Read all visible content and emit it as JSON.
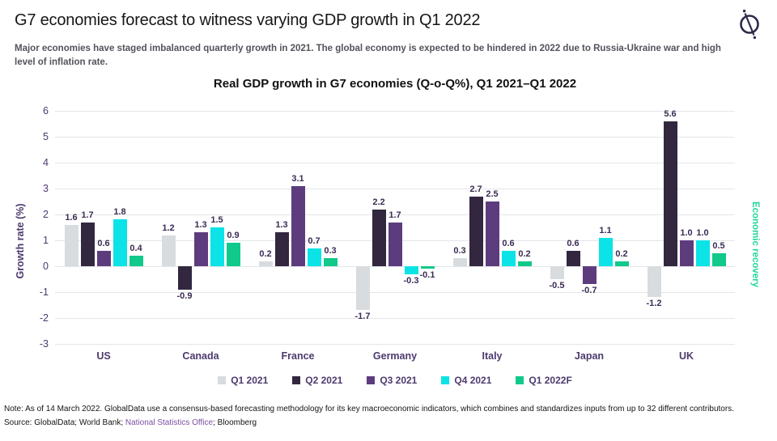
{
  "header": {
    "title": "G7 economies forecast to witness varying GDP growth in Q1 2022",
    "subtitle": "Major economies have staged imbalanced quarterly growth in 2021. The global economy is expected to be hindered in 2022 due to Russia-Ukraine war and high level of inflation rate.",
    "logo_icon": "globaldata-logo"
  },
  "chart_data": {
    "type": "bar",
    "title": "Real GDP growth in G7 economies (Q-o-Q%), Q1 2021–Q1 2022",
    "xlabel": "",
    "ylabel": "Growth rate (%)",
    "ylim": [
      -3,
      6
    ],
    "yticks": [
      6,
      5,
      4,
      3,
      2,
      1,
      0,
      -1,
      -2,
      -3
    ],
    "grid": true,
    "legend_position": "bottom",
    "categories": [
      "US",
      "Canada",
      "France",
      "Germany",
      "Italy",
      "Japan",
      "UK"
    ],
    "series": [
      {
        "name": "Q1 2021",
        "color": "#d9dcde",
        "values": [
          1.6,
          1.2,
          0.2,
          -1.7,
          0.3,
          -0.5,
          -1.2
        ]
      },
      {
        "name": "Q2 2021",
        "color": "#32273f",
        "values": [
          1.7,
          -0.9,
          1.3,
          2.2,
          2.7,
          0.6,
          5.6
        ]
      },
      {
        "name": "Q3 2021",
        "color": "#5d3c7e",
        "values": [
          0.6,
          1.3,
          3.1,
          1.7,
          2.5,
          -0.7,
          1.0
        ]
      },
      {
        "name": "Q4 2021",
        "color": "#0be3e6",
        "values": [
          1.8,
          1.5,
          0.7,
          -0.3,
          0.6,
          1.1,
          1.0
        ]
      },
      {
        "name": "Q1 2022F",
        "color": "#10c98a",
        "values": [
          0.4,
          0.9,
          0.3,
          -0.1,
          0.2,
          0.2,
          0.5
        ]
      }
    ],
    "annotation": "Economic recovery"
  },
  "side_label": "Economic recovery",
  "footer": {
    "note": "Note: As of 14 March 2022.  GlobalData use a consensus-based forecasting methodology for its key macroeconomic indicators, which combines and standardizes inputs from up to 32 different contributors.",
    "source_prefix": "Source: GlobalData; World Bank; ",
    "source_link": "National Statistics Office",
    "source_suffix": "; Bloomberg"
  },
  "colors": {
    "accent_green": "#1fd79b",
    "purple_text": "#4c3a6e",
    "data_label": "#3b2c55",
    "gridline": "#e3e5e8",
    "link_purple": "#7a4fa3",
    "logo_navy": "#2d2a4a"
  }
}
